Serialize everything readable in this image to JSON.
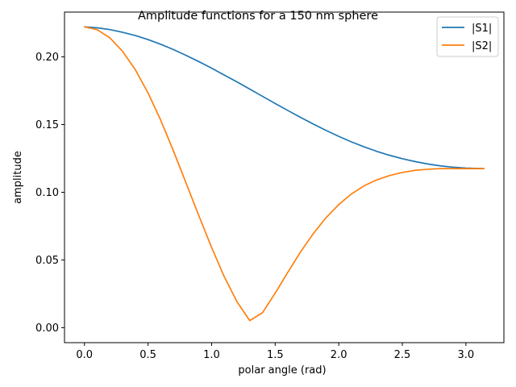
{
  "chart_data": {
    "type": "line",
    "title": "Amplitude functions for a 150 nm sphere",
    "xlabel": "polar angle (rad)",
    "ylabel": "amplitude",
    "xlim": [
      -0.157,
      3.299
    ],
    "ylim": [
      -0.0111,
      0.2331
    ],
    "xticks": [
      0.0,
      0.5,
      1.0,
      1.5,
      2.0,
      2.5,
      3.0
    ],
    "xtick_labels": [
      "0.0",
      "0.5",
      "1.0",
      "1.5",
      "2.0",
      "2.5",
      "3.0"
    ],
    "yticks": [
      0.0,
      0.05,
      0.1,
      0.15,
      0.2
    ],
    "ytick_labels": [
      "0.00",
      "0.05",
      "0.10",
      "0.15",
      "0.20"
    ],
    "grid": false,
    "legend_position": "upper right",
    "series": [
      {
        "name": "|S1|",
        "color": "#1f77b4",
        "x": [
          0.0,
          0.1,
          0.2,
          0.3,
          0.4,
          0.5,
          0.6,
          0.7,
          0.8,
          0.9,
          1.0,
          1.1,
          1.2,
          1.3,
          1.4,
          1.5,
          1.6,
          1.7,
          1.8,
          1.9,
          2.0,
          2.1,
          2.2,
          2.3,
          2.4,
          2.5,
          2.6,
          2.7,
          2.8,
          2.9,
          3.0,
          3.1,
          3.1416
        ],
        "y": [
          0.2222,
          0.2215,
          0.2202,
          0.2182,
          0.2158,
          0.2128,
          0.2093,
          0.2054,
          0.2011,
          0.1965,
          0.1917,
          0.1866,
          0.1815,
          0.1762,
          0.1709,
          0.1656,
          0.1604,
          0.1553,
          0.1504,
          0.1457,
          0.1413,
          0.1372,
          0.1335,
          0.1302,
          0.1273,
          0.1248,
          0.1227,
          0.1209,
          0.1195,
          0.1185,
          0.1179,
          0.1176,
          0.1175
        ]
      },
      {
        "name": "|S2|",
        "color": "#ff7f0e",
        "x": [
          0.0,
          0.1,
          0.2,
          0.3,
          0.4,
          0.5,
          0.6,
          0.7,
          0.8,
          0.9,
          1.0,
          1.1,
          1.2,
          1.3,
          1.4,
          1.5,
          1.6,
          1.7,
          1.8,
          1.9,
          2.0,
          2.1,
          2.2,
          2.3,
          2.4,
          2.5,
          2.6,
          2.7,
          2.8,
          2.9,
          3.0,
          3.1,
          3.1416
        ],
        "y": [
          0.2222,
          0.2201,
          0.2141,
          0.2041,
          0.1905,
          0.1734,
          0.1532,
          0.1305,
          0.1066,
          0.0826,
          0.0592,
          0.0375,
          0.0191,
          0.0052,
          0.011,
          0.0255,
          0.041,
          0.056,
          0.0695,
          0.0812,
          0.0909,
          0.0988,
          0.1048,
          0.1092,
          0.1124,
          0.1146,
          0.1162,
          0.117,
          0.1175,
          0.1175,
          0.1175,
          0.1175,
          0.1175
        ]
      }
    ]
  }
}
